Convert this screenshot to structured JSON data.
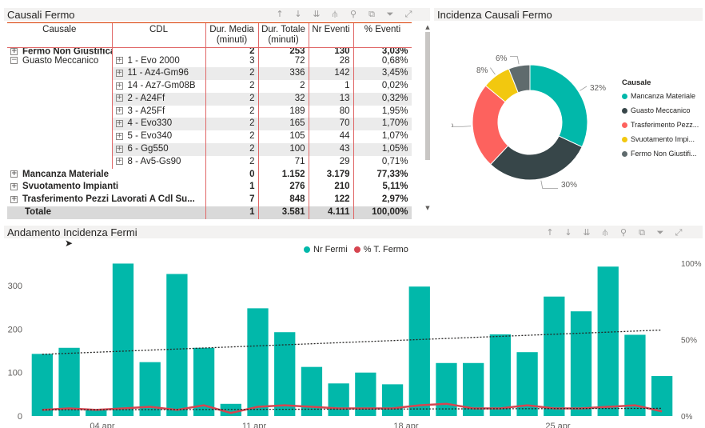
{
  "table_visual": {
    "title": "Causali Fermo",
    "columns": [
      "Causale",
      "CDL",
      "Dur. Media (minuti)",
      "Dur. Totale (minuti)",
      "Nr Eventi",
      "% Eventi"
    ],
    "partial_row": {
      "causale": "Fermo Non Giustificato",
      "media": "2",
      "totale": "253",
      "eventi": "130",
      "pct": "3,03%"
    },
    "group_row": {
      "expander": "−",
      "causale": "Guasto Meccanico"
    },
    "sub_rows": [
      {
        "expander": "+",
        "cdl": "1 -  Evo 2000",
        "media": "3",
        "totale": "72",
        "eventi": "28",
        "pct": "0,68%"
      },
      {
        "expander": "+",
        "cdl": "11 -  Az4-Gm96",
        "media": "2",
        "totale": "336",
        "eventi": "142",
        "pct": "3,45%"
      },
      {
        "expander": "+",
        "cdl": "14 -  Az7-Gm08B",
        "media": "2",
        "totale": "2",
        "eventi": "1",
        "pct": "0,02%"
      },
      {
        "expander": "+",
        "cdl": "2 -  A24Ff",
        "media": "2",
        "totale": "32",
        "eventi": "13",
        "pct": "0,32%"
      },
      {
        "expander": "+",
        "cdl": "3 -  A25Ff",
        "media": "2",
        "totale": "189",
        "eventi": "80",
        "pct": "1,95%"
      },
      {
        "expander": "+",
        "cdl": "4 -  Evo330",
        "media": "2",
        "totale": "165",
        "eventi": "70",
        "pct": "1,70%"
      },
      {
        "expander": "+",
        "cdl": "5 -  Evo340",
        "media": "2",
        "totale": "105",
        "eventi": "44",
        "pct": "1,07%"
      },
      {
        "expander": "+",
        "cdl": "6 -  Gg550",
        "media": "2",
        "totale": "100",
        "eventi": "43",
        "pct": "1,05%"
      },
      {
        "expander": "+",
        "cdl": "8 -  Av5-Gs90",
        "media": "2",
        "totale": "71",
        "eventi": "29",
        "pct": "0,71%"
      }
    ],
    "bold_rows": [
      {
        "expander": "+",
        "causale": "Mancanza Materiale",
        "media": "0",
        "totale": "1.152",
        "eventi": "3.179",
        "pct": "77,33%"
      },
      {
        "expander": "+",
        "causale": "Svuotamento Impianti",
        "media": "1",
        "totale": "276",
        "eventi": "210",
        "pct": "5,11%"
      },
      {
        "expander": "+",
        "causale": "Trasferimento Pezzi Lavorati A Cdl Su...",
        "media": "7",
        "totale": "848",
        "eventi": "122",
        "pct": "2,97%"
      }
    ],
    "total_row": {
      "causale": "Totale",
      "media": "1",
      "totale": "3.581",
      "eventi": "4.111",
      "pct": "100,00%"
    }
  },
  "toolbar_icons": [
    "arrow-up-icon",
    "arrow-down-icon",
    "double-arrow-down-icon",
    "hierarchy-icon",
    "pin-icon",
    "copy-icon",
    "filter-icon",
    "focus-mode-icon",
    "more-options-icon"
  ],
  "toolbar_glyphs": [
    "↑",
    "↓",
    "⇊",
    "⫛",
    "⚲",
    "⧉",
    "⏷",
    "⤢",
    "⋯"
  ],
  "donut_visual": {
    "title": "Incidenza Causali Fermo",
    "legend_title": "Causale",
    "chart_data": {
      "type": "pie",
      "categories": [
        "Mancanza Materiale",
        "Guasto Meccanico",
        "Trasferimento Pezz...",
        "Svuotamento Impi...",
        "Fermo Non Giustifi..."
      ],
      "values": [
        32,
        30,
        24,
        8,
        6
      ],
      "labels": [
        "32%",
        "30%",
        "24%",
        "8%",
        "6%"
      ],
      "colors": [
        "#01b8aa",
        "#374649",
        "#fd625e",
        "#f2c80f",
        "#5f6b6d"
      ]
    }
  },
  "trend_visual": {
    "title": "Andamento Incidenza Fermi",
    "chart_data": {
      "type": "bar",
      "series": [
        {
          "name": "Nr Fermi",
          "type": "bar",
          "color": "#01b8aa",
          "values": [
            143,
            157,
            16,
            351,
            124,
            327,
            157,
            28,
            248,
            193,
            113,
            75,
            100,
            73,
            298,
            122,
            122,
            188,
            147,
            275,
            241,
            344,
            187,
            92
          ]
        },
        {
          "name": "% T. Fermo",
          "type": "line",
          "color": "#d64550",
          "values": [
            4,
            5,
            4,
            5,
            6,
            4,
            7,
            2,
            6,
            7,
            6,
            5,
            5,
            5,
            7,
            8,
            5,
            5,
            7,
            5,
            5,
            6,
            7,
            3
          ]
        }
      ],
      "trend_bar": {
        "start": 142,
        "end": 198
      },
      "trend_line_pct": {
        "start": 4,
        "end": 5
      },
      "y_left": {
        "ticks": [
          "0",
          "100",
          "200",
          "300"
        ],
        "min": 0,
        "max": 350
      },
      "y_right": {
        "ticks": [
          "0%",
          "50%",
          "100%"
        ],
        "min": 0,
        "max": 100
      },
      "x_ticks": [
        "04 apr",
        "11 apr",
        "18 apr",
        "25 apr"
      ]
    }
  }
}
